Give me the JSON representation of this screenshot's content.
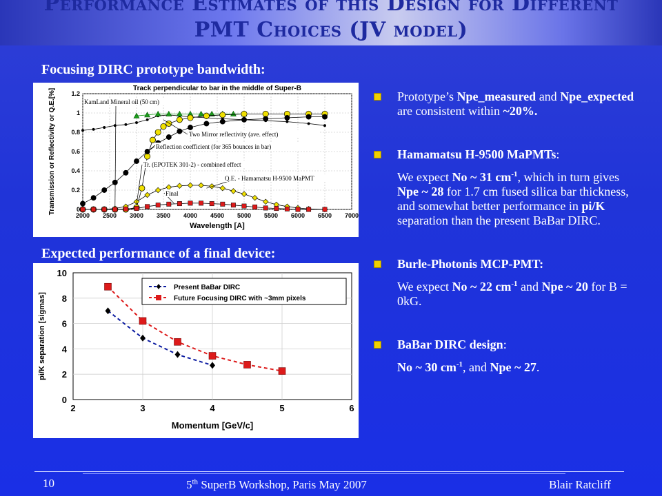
{
  "title": {
    "line1": "Performance Estimates of this Design for Different",
    "line2": "PMT Choices (JV model)"
  },
  "sections": {
    "bandwidth_label": "Focusing DIRC prototype bandwidth:",
    "final_label": "Expected performance of a final device:"
  },
  "bullets": {
    "b1": {
      "p1": "Prototype’s ",
      "b1": "Npe_measured",
      "p2": " and ",
      "b2": "Npe_expected",
      "p3": " are consistent within ",
      "b3": "~20%."
    },
    "b2": {
      "head": "Hamamatsu H-9500 MaPMTs",
      "head_tail": ":",
      "s1": "We expect ",
      "s2": "No ~ 31 cm",
      "s2sup": "-1",
      "s3": ", which in turn gives ",
      "s4": "Npe ~ 28",
      "s5": " for 1.7 cm fused silica bar thickness, and somewhat better performance in ",
      "s6": "pi/K",
      "s7": " separation than the present BaBar DIRC."
    },
    "b3": {
      "head": "Burle-Photonis MCP-PMT:",
      "s1": "We expect ",
      "s2": "No ~ 22 cm",
      "s2sup": "-1",
      "s3": " and ",
      "s4": "Npe ~ 20",
      "s5": " for B = 0kG."
    },
    "b4": {
      "head": "BaBar DIRC design",
      "head_tail": ":",
      "s2": "No ~ 30 cm",
      "s2sup": "-1",
      "s3": ", and ",
      "s4": "Npe ~ 27",
      "s5": "."
    }
  },
  "footer": {
    "page": "10",
    "event_pre": "5",
    "event_sup": "th",
    "event_post": " SuperB Workshop, Paris  May 2007",
    "author": "Blair Ratcliff"
  },
  "colors": {
    "accent": "#f0d000",
    "series_black": "#000000",
    "series_green": "#1a9a1a",
    "series_yellow": "#f0e000",
    "series_red": "#dd1a1a",
    "series_blue": "#0a1aa0"
  },
  "chart_data": [
    {
      "type": "line",
      "title": "Track perpendicular to bar in the middle of Super-B",
      "xlabel": "Wavelength [A]",
      "ylabel": "Transmission or Reflectivity or Q.E.[%]",
      "xlim": [
        2000,
        7000
      ],
      "ylim": [
        0,
        1.2
      ],
      "xticks": [
        2000,
        2500,
        3000,
        3500,
        4000,
        4500,
        5000,
        5500,
        6000,
        6500,
        7000
      ],
      "yticks": [
        0,
        0.2,
        0.4,
        0.6,
        0.8,
        1,
        1.2
      ],
      "grid": true,
      "annotations": [
        "KamLand Mineral oil (50 cm)",
        "Two Mirror reflectivity (ave. effect)",
        "Reflection coefficient (for 365 bounces in bar)",
        "Tr. (EPOTEK 301-2) - combined effect",
        "Q.E. - Hamamatsu H-9500 MaPMT",
        "Final"
      ],
      "series": [
        {
          "x": [
            2000,
            2200,
            2400,
            2600,
            2800,
            3000,
            3200,
            3400,
            3600,
            3800,
            4000,
            4300,
            4600,
            5000,
            5400,
            5800,
            6200,
            6500
          ],
          "values": [
            0.82,
            0.83,
            0.85,
            0.87,
            0.88,
            0.9,
            0.93,
            0.97,
            0.98,
            0.97,
            0.96,
            0.95,
            0.94,
            0.93,
            0.92,
            0.91,
            0.89,
            0.87
          ],
          "style": "small-black-dots"
        },
        {
          "x": [
            3000,
            3200,
            3400,
            3600,
            3800,
            4000,
            4200,
            4400,
            4600,
            4800,
            5000
          ],
          "values": [
            0.97,
            0.98,
            0.99,
            0.99,
            0.99,
            0.99,
            0.99,
            0.99,
            0.99,
            0.99,
            0.99
          ],
          "style": "green-triangles"
        },
        {
          "x": [
            2000,
            2200,
            2400,
            2600,
            2800,
            3000,
            3100,
            3200,
            3300,
            3400,
            3500,
            3600,
            3800,
            4000,
            4300,
            4600,
            5000,
            5400,
            5800,
            6200,
            6500
          ],
          "values": [
            0.0,
            0.0,
            0.0,
            0.0,
            0.0,
            0.02,
            0.22,
            0.55,
            0.72,
            0.8,
            0.86,
            0.89,
            0.93,
            0.95,
            0.97,
            0.98,
            0.99,
            0.99,
            0.99,
            0.99,
            0.99
          ],
          "style": "yellow-circles"
        },
        {
          "x": [
            2000,
            2200,
            2400,
            2600,
            2800,
            3000,
            3200,
            3400,
            3600,
            3800,
            4000,
            4300,
            4600,
            5000,
            5400,
            5800,
            6200,
            6500
          ],
          "values": [
            0.06,
            0.12,
            0.2,
            0.28,
            0.38,
            0.5,
            0.6,
            0.69,
            0.75,
            0.81,
            0.85,
            0.89,
            0.91,
            0.93,
            0.94,
            0.95,
            0.96,
            0.96
          ],
          "style": "black-circles"
        },
        {
          "x": [
            2000,
            2200,
            2400,
            2600,
            2800,
            3000,
            3200,
            3400,
            3600,
            3800,
            4000,
            4200,
            4400,
            4600,
            4800,
            5000,
            5200,
            5400,
            5600,
            5800,
            6000,
            6200,
            6500
          ],
          "values": [
            0.0,
            0.0,
            0.0,
            0.01,
            0.03,
            0.08,
            0.15,
            0.2,
            0.23,
            0.245,
            0.25,
            0.25,
            0.24,
            0.22,
            0.19,
            0.16,
            0.12,
            0.08,
            0.05,
            0.03,
            0.015,
            0.005,
            0.0
          ],
          "style": "yellow-diamonds"
        },
        {
          "x": [
            2000,
            2200,
            2400,
            2600,
            2800,
            3000,
            3200,
            3400,
            3600,
            3800,
            4000,
            4200,
            4400,
            4600,
            4800,
            5000,
            5200,
            5400,
            5600,
            5800,
            6000,
            6200,
            6500
          ],
          "values": [
            0.0,
            0.0,
            0.0,
            0.0,
            0.005,
            0.01,
            0.03,
            0.045,
            0.055,
            0.06,
            0.065,
            0.065,
            0.06,
            0.055,
            0.045,
            0.035,
            0.025,
            0.015,
            0.01,
            0.005,
            0.0,
            0.0,
            0.0
          ],
          "style": "red-squares"
        }
      ]
    },
    {
      "type": "scatter",
      "xlabel": "Momentum [GeV/c]",
      "ylabel": "pi/K separation [sigmas]",
      "xlim": [
        2,
        6
      ],
      "ylim": [
        0,
        10
      ],
      "xticks": [
        2,
        3,
        4,
        5,
        6
      ],
      "yticks": [
        0,
        2,
        4,
        6,
        8,
        10
      ],
      "legend": "top-right",
      "series": [
        {
          "name": "Present BaBar DIRC",
          "marker": "diamond",
          "color": "#0a1aa0",
          "x": [
            2.5,
            3,
            3.5,
            4
          ],
          "values": [
            7.0,
            4.85,
            3.55,
            2.7
          ]
        },
        {
          "name": "Future Focusing DIRC with ~3mm pixels",
          "marker": "square",
          "color": "#dd1a1a",
          "x": [
            2.5,
            3,
            3.5,
            4,
            4.5,
            5
          ],
          "values": [
            8.9,
            6.2,
            4.55,
            3.45,
            2.75,
            2.25
          ]
        }
      ]
    }
  ]
}
